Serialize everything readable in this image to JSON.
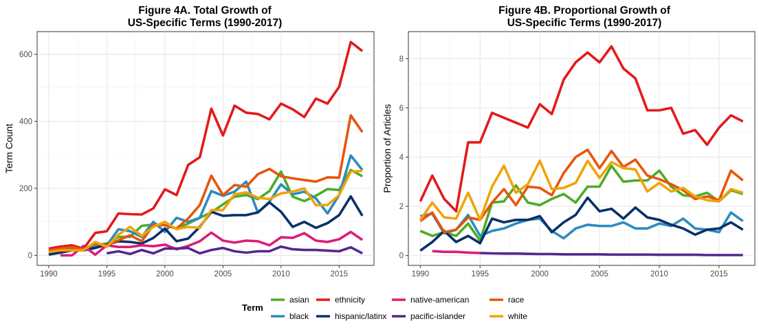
{
  "chart_data": [
    {
      "type": "line",
      "title_line1": "Figure 4A. Total Growth of",
      "title_line2": "US-Specific Terms (1990-2017)",
      "xlabel": "",
      "ylabel": "Term Count",
      "xlim": [
        1989,
        2018
      ],
      "ylim": [
        -30,
        668
      ],
      "xticks": [
        1990,
        1995,
        2000,
        2005,
        2010,
        2015
      ],
      "yticks": [
        0,
        200,
        400,
        600
      ],
      "grid": true,
      "series": [
        {
          "name": "asian",
          "x": [
            1990,
            1991,
            1992,
            1993,
            1994,
            1995,
            1996,
            1997,
            1998,
            1999,
            2000,
            2001,
            2002,
            2003,
            2004,
            2005,
            2006,
            2007,
            2008,
            2009,
            2010,
            2011,
            2012,
            2013,
            2014,
            2015,
            2016,
            2017
          ],
          "values": [
            8,
            12,
            20,
            18,
            30,
            35,
            55,
            55,
            88,
            92,
            90,
            80,
            95,
            112,
            128,
            152,
            175,
            180,
            168,
            192,
            250,
            175,
            162,
            178,
            198,
            195,
            255,
            236
          ]
        },
        {
          "name": "black",
          "x": [
            1990,
            1991,
            1992,
            1993,
            1994,
            1995,
            1996,
            1997,
            1998,
            1999,
            2000,
            2001,
            2002,
            2003,
            2004,
            2005,
            2006,
            2007,
            2008,
            2009,
            2010,
            2011,
            2012,
            2013,
            2014,
            2015,
            2016,
            2017
          ],
          "values": [
            12,
            12,
            20,
            18,
            25,
            30,
            78,
            72,
            55,
            100,
            70,
            112,
            100,
            112,
            192,
            178,
            190,
            220,
            128,
            160,
            212,
            182,
            190,
            170,
            125,
            180,
            298,
            255
          ]
        },
        {
          "name": "ethnicity",
          "x": [
            1990,
            1991,
            1992,
            1993,
            1994,
            1995,
            1996,
            1997,
            1998,
            1999,
            2000,
            2001,
            2002,
            2003,
            2004,
            2005,
            2006,
            2007,
            2008,
            2009,
            2010,
            2011,
            2012,
            2013,
            2014,
            2015,
            2016,
            2017
          ],
          "values": [
            20,
            26,
            30,
            20,
            67,
            72,
            125,
            123,
            122,
            140,
            197,
            180,
            270,
            293,
            438,
            358,
            447,
            426,
            422,
            406,
            453,
            436,
            413,
            468,
            453,
            503,
            637,
            610
          ]
        },
        {
          "name": "hispanic/latinx",
          "x": [
            1990,
            1991,
            1992,
            1993,
            1994,
            1995,
            1996,
            1997,
            1998,
            1999,
            2000,
            2001,
            2002,
            2003,
            2004,
            2005,
            2006,
            2007,
            2008,
            2009,
            2010,
            2011,
            2012,
            2013,
            2014,
            2015,
            2016,
            2017
          ],
          "values": [
            2,
            8,
            15,
            15,
            22,
            32,
            42,
            40,
            35,
            52,
            80,
            42,
            50,
            85,
            130,
            118,
            120,
            120,
            128,
            158,
            130,
            85,
            100,
            82,
            96,
            120,
            176,
            118
          ]
        },
        {
          "name": "native-american",
          "x": [
            1991,
            1992,
            1993,
            1994,
            1995,
            1996,
            1997,
            1998,
            1999,
            2000,
            2001,
            2002,
            2003,
            2004,
            2005,
            2006,
            2007,
            2008,
            2009,
            2010,
            2011,
            2012,
            2013,
            2014,
            2015,
            2016,
            2017
          ],
          "values": [
            0,
            0,
            28,
            2,
            30,
            25,
            25,
            30,
            27,
            32,
            18,
            28,
            42,
            68,
            44,
            38,
            44,
            42,
            30,
            54,
            52,
            66,
            44,
            40,
            48,
            70,
            46
          ]
        },
        {
          "name": "pacific-islander",
          "x": [
            1995,
            1996,
            1997,
            1998,
            1999,
            2000,
            2001,
            2002,
            2003,
            2004,
            2005,
            2006,
            2007,
            2008,
            2009,
            2010,
            2011,
            2012,
            2013,
            2014,
            2015,
            2016,
            2017
          ],
          "values": [
            6,
            12,
            4,
            16,
            6,
            20,
            20,
            22,
            6,
            16,
            22,
            12,
            8,
            12,
            12,
            26,
            18,
            16,
            16,
            14,
            12,
            24,
            6
          ]
        },
        {
          "name": "race",
          "x": [
            1990,
            1991,
            1992,
            1993,
            1994,
            1995,
            1996,
            1997,
            1998,
            1999,
            2000,
            2001,
            2002,
            2003,
            2004,
            2005,
            2006,
            2007,
            2008,
            2009,
            2010,
            2011,
            2012,
            2013,
            2014,
            2015,
            2016,
            2017
          ],
          "values": [
            15,
            20,
            24,
            18,
            35,
            30,
            45,
            60,
            42,
            90,
            90,
            80,
            110,
            150,
            238,
            180,
            210,
            205,
            242,
            258,
            236,
            230,
            225,
            220,
            233,
            232,
            418,
            368
          ]
        },
        {
          "name": "white",
          "x": [
            1990,
            1991,
            1992,
            1993,
            1994,
            1995,
            1996,
            1997,
            1998,
            1999,
            2000,
            2001,
            2002,
            2003,
            2004,
            2005,
            2006,
            2007,
            2008,
            2009,
            2010,
            2011,
            2012,
            2013,
            2014,
            2015,
            2016,
            2017
          ],
          "values": [
            10,
            15,
            15,
            15,
            40,
            25,
            62,
            85,
            58,
            85,
            100,
            78,
            85,
            82,
            135,
            135,
            182,
            188,
            172,
            168,
            185,
            190,
            200,
            150,
            150,
            180,
            250,
            252
          ]
        }
      ]
    },
    {
      "type": "line",
      "title_line1": "Figure 4B. Proportional Growth of",
      "title_line2": "US-Specific Terms (1990-2017)",
      "xlabel": "",
      "ylabel": "Proportion of Articles",
      "xlim": [
        1989,
        2018
      ],
      "ylim": [
        -0.4,
        9.1
      ],
      "xticks": [
        1990,
        1995,
        2000,
        2005,
        2010,
        2015
      ],
      "yticks": [
        0,
        2,
        4,
        6,
        8
      ],
      "grid": true,
      "series": [
        {
          "name": "asian",
          "x": [
            1990,
            1991,
            1992,
            1993,
            1994,
            1995,
            1996,
            1997,
            1998,
            1999,
            2000,
            2001,
            2002,
            2003,
            2004,
            2005,
            2006,
            2007,
            2008,
            2009,
            2010,
            2011,
            2012,
            2013,
            2014,
            2015,
            2016,
            2017
          ],
          "values": [
            1.0,
            0.8,
            0.95,
            0.8,
            1.3,
            0.6,
            2.15,
            2.2,
            2.85,
            2.15,
            2.05,
            2.3,
            2.5,
            2.15,
            2.8,
            2.8,
            3.65,
            3.0,
            3.05,
            3.05,
            3.45,
            2.8,
            2.45,
            2.4,
            2.55,
            2.2,
            2.65,
            2.5
          ]
        },
        {
          "name": "black",
          "x": [
            1990,
            1991,
            1992,
            1993,
            1994,
            1995,
            1996,
            1997,
            1998,
            1999,
            2000,
            2001,
            2002,
            2003,
            2004,
            2005,
            2006,
            2007,
            2008,
            2009,
            2010,
            2011,
            2012,
            2013,
            2014,
            2015,
            2016,
            2017
          ],
          "values": [
            1.6,
            1.7,
            0.9,
            1.05,
            1.65,
            0.8,
            1.0,
            1.1,
            1.3,
            1.45,
            1.5,
            1.0,
            0.7,
            1.1,
            1.25,
            1.2,
            1.2,
            1.35,
            1.1,
            1.1,
            1.3,
            1.2,
            1.5,
            1.1,
            1.05,
            0.95,
            1.75,
            1.4
          ]
        },
        {
          "name": "ethnicity",
          "x": [
            1990,
            1991,
            1992,
            1993,
            1994,
            1995,
            1996,
            1997,
            1998,
            1999,
            2000,
            2001,
            2002,
            2003,
            2004,
            2005,
            2006,
            2007,
            2008,
            2009,
            2010,
            2011,
            2012,
            2013,
            2014,
            2015,
            2016,
            2017
          ],
          "values": [
            2.2,
            3.25,
            2.3,
            1.8,
            4.6,
            4.6,
            5.8,
            5.6,
            5.4,
            5.2,
            6.15,
            5.75,
            7.15,
            7.85,
            8.25,
            7.85,
            8.5,
            7.6,
            7.2,
            5.9,
            5.9,
            6.0,
            4.95,
            5.1,
            4.5,
            5.2,
            5.7,
            5.45
          ]
        },
        {
          "name": "hispanic/latinx",
          "x": [
            1990,
            1991,
            1992,
            1993,
            1994,
            1995,
            1996,
            1997,
            1998,
            1999,
            2000,
            2001,
            2002,
            2003,
            2004,
            2005,
            2006,
            2007,
            2008,
            2009,
            2010,
            2011,
            2012,
            2013,
            2014,
            2015,
            2016,
            2017
          ],
          "values": [
            0.2,
            0.55,
            1.0,
            0.55,
            0.8,
            0.5,
            1.5,
            1.35,
            1.45,
            1.45,
            1.6,
            0.95,
            1.35,
            1.65,
            2.35,
            1.8,
            1.9,
            1.5,
            1.95,
            1.55,
            1.45,
            1.25,
            1.1,
            0.85,
            1.05,
            1.1,
            1.35,
            1.05
          ]
        },
        {
          "name": "native-american",
          "x": [
            1991,
            1992,
            1993,
            1994,
            1995
          ],
          "values": [
            0.18,
            0.15,
            0.15,
            0.12,
            0.1
          ]
        },
        {
          "name": "pacific-islander",
          "x": [
            1995,
            1996,
            1997,
            1998,
            1999,
            2000,
            2001,
            2002,
            2003,
            2004,
            2005,
            2006,
            2007,
            2008,
            2009,
            2010,
            2011,
            2012,
            2013,
            2014,
            2015,
            2016,
            2017
          ],
          "values": [
            0.1,
            0.09,
            0.08,
            0.08,
            0.07,
            0.06,
            0.06,
            0.05,
            0.05,
            0.05,
            0.05,
            0.04,
            0.04,
            0.04,
            0.04,
            0.03,
            0.03,
            0.03,
            0.03,
            0.02,
            0.02,
            0.02,
            0.02
          ]
        },
        {
          "name": "race",
          "x": [
            1990,
            1991,
            1992,
            1993,
            1994,
            1995,
            1996,
            1997,
            1998,
            1999,
            2000,
            2001,
            2002,
            2003,
            2004,
            2005,
            2006,
            2007,
            2008,
            2009,
            2010,
            2011,
            2012,
            2013,
            2014,
            2015,
            2016,
            2017
          ],
          "values": [
            1.4,
            1.75,
            0.95,
            1.05,
            1.55,
            1.45,
            2.15,
            2.7,
            2.05,
            2.8,
            2.75,
            2.45,
            3.35,
            4.0,
            4.3,
            3.55,
            4.25,
            3.6,
            3.9,
            3.25,
            3.1,
            2.9,
            2.65,
            2.3,
            2.4,
            2.25,
            3.45,
            3.05
          ]
        },
        {
          "name": "white",
          "x": [
            1990,
            1991,
            1992,
            1993,
            1994,
            1995,
            1996,
            1997,
            1998,
            1999,
            2000,
            2001,
            2002,
            2003,
            2004,
            2005,
            2006,
            2007,
            2008,
            2009,
            2010,
            2011,
            2012,
            2013,
            2014,
            2015,
            2016,
            2017
          ],
          "values": [
            1.45,
            2.15,
            1.55,
            1.5,
            2.55,
            1.45,
            2.8,
            3.65,
            2.55,
            2.9,
            3.85,
            2.7,
            2.75,
            2.95,
            3.85,
            3.15,
            3.8,
            3.55,
            3.5,
            2.6,
            2.95,
            2.6,
            2.75,
            2.4,
            2.25,
            2.2,
            2.7,
            2.55
          ]
        }
      ]
    }
  ],
  "legend": {
    "title": "Term",
    "position": "bottom",
    "items": [
      {
        "label": "asian",
        "color": "#4dac26"
      },
      {
        "label": "black",
        "color": "#2b8cbe"
      },
      {
        "label": "ethnicity",
        "color": "#e31a1c"
      },
      {
        "label": "hispanic/latinx",
        "color": "#08306b"
      },
      {
        "label": "native-american",
        "color": "#dd1c77"
      },
      {
        "label": "pacific-islander",
        "color": "#54278f"
      },
      {
        "label": "race",
        "color": "#e6550d"
      },
      {
        "label": "white",
        "color": "#f0a30a"
      }
    ]
  },
  "colors": {
    "asian": "#4dac26",
    "black": "#2b8cbe",
    "ethnicity": "#e31a1c",
    "hispanic/latinx": "#08306b",
    "native-american": "#dd1c77",
    "pacific-islander": "#54278f",
    "race": "#e6550d",
    "white": "#f0a30a"
  }
}
